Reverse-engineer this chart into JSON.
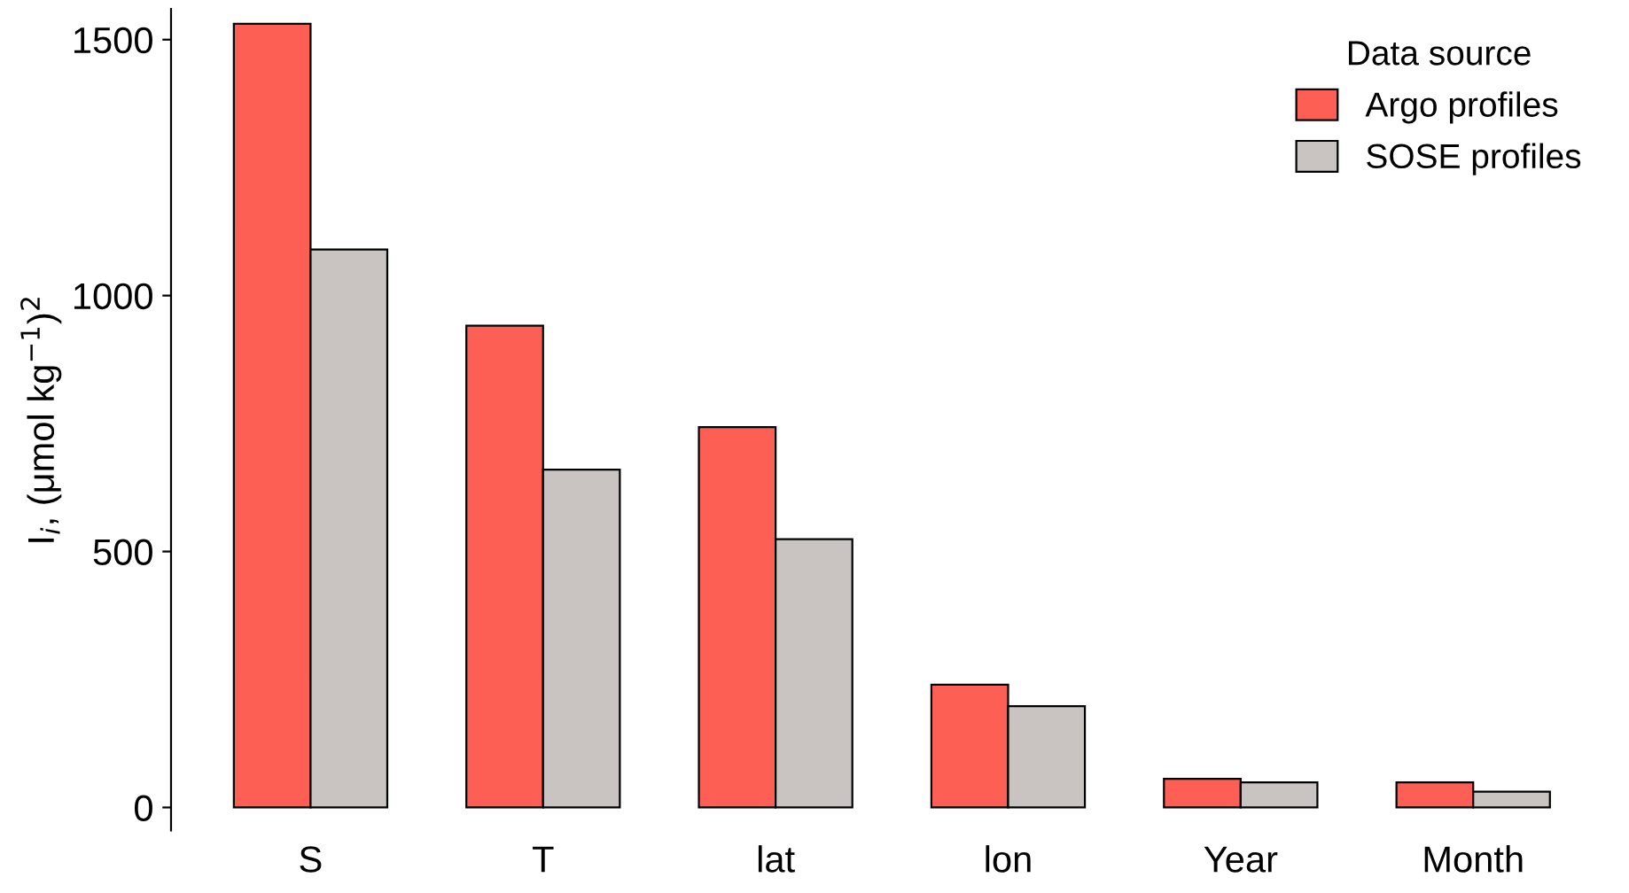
{
  "chart_data": {
    "type": "bar",
    "ylabel": "I$_{i}$, (μmol kg$^{−1}$)$^{2}$",
    "legend_title": "Data source",
    "categories": [
      "S",
      "T",
      "lat",
      "lon",
      "Year",
      "Month"
    ],
    "series": [
      {
        "name": "Argo profiles",
        "color": "#fe5f55",
        "values": [
          1531,
          941,
          743,
          240,
          56,
          49
        ]
      },
      {
        "name": "SOSE profiles",
        "color": "#c9c4c1",
        "values": [
          1090,
          660,
          524,
          198,
          49,
          31
        ]
      }
    ],
    "ylim": [
      -45,
      1560
    ],
    "yticks": [
      0,
      500,
      1000,
      1500
    ],
    "grid": false,
    "legend": "top right"
  }
}
